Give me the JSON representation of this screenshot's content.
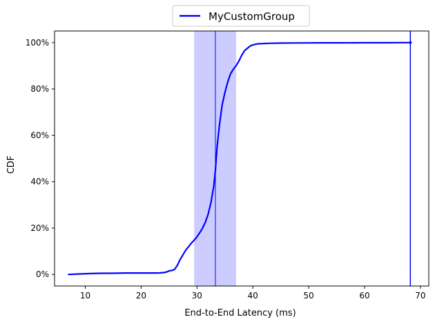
{
  "chart_data": {
    "type": "line",
    "xlabel": "End-to-End Latency (ms)",
    "ylabel": "CDF",
    "xlim": [
      4.5,
      71.5
    ],
    "ylim": [
      -5,
      105
    ],
    "x_ticks": [
      10,
      20,
      30,
      40,
      50,
      60,
      70
    ],
    "y_ticks": [
      0,
      20,
      40,
      60,
      80,
      100
    ],
    "x_tick_labels": [
      "10",
      "20",
      "30",
      "40",
      "50",
      "60",
      "70"
    ],
    "y_tick_labels": [
      "0%",
      "20%",
      "40%",
      "60%",
      "80%",
      "100%"
    ],
    "legend_position": "top-center",
    "grid": false,
    "colors": {
      "series": "#0000ff",
      "band": "#0000ff"
    },
    "series": [
      {
        "name": "MyCustomGroup",
        "x": [
          7,
          9,
          11,
          13,
          15,
          17,
          19,
          21,
          22,
          23,
          24,
          24.5,
          25,
          25.5,
          26,
          26.5,
          27,
          27.5,
          28,
          28.5,
          29,
          29.5,
          30,
          30.5,
          31,
          31.5,
          32,
          32.5,
          33,
          33.3,
          33.6,
          34,
          34.5,
          35,
          35.5,
          36,
          36.5,
          37,
          37.5,
          38,
          38.5,
          39,
          39.5,
          40,
          40.5,
          41,
          42,
          43,
          45,
          48,
          52,
          56,
          60,
          64,
          68.2
        ],
        "y": [
          0,
          0.2,
          0.4,
          0.5,
          0.5,
          0.6,
          0.6,
          0.6,
          0.6,
          0.6,
          0.8,
          1,
          1.5,
          1.7,
          2.2,
          4,
          6.5,
          8.5,
          10.5,
          12,
          13.5,
          14.8,
          16.2,
          18,
          20,
          22.5,
          26,
          31,
          38,
          45,
          55,
          64,
          73,
          78.5,
          83,
          86.5,
          88.5,
          90,
          92,
          94.5,
          96.5,
          97.5,
          98.5,
          99,
          99.3,
          99.5,
          99.6,
          99.7,
          99.8,
          99.85,
          99.9,
          99.9,
          99.95,
          99.95,
          100
        ]
      }
    ],
    "annotations": {
      "shaded_band_x": [
        29.5,
        37
      ],
      "median_line_x": 33.3,
      "max_line_x": 68.2
    }
  }
}
